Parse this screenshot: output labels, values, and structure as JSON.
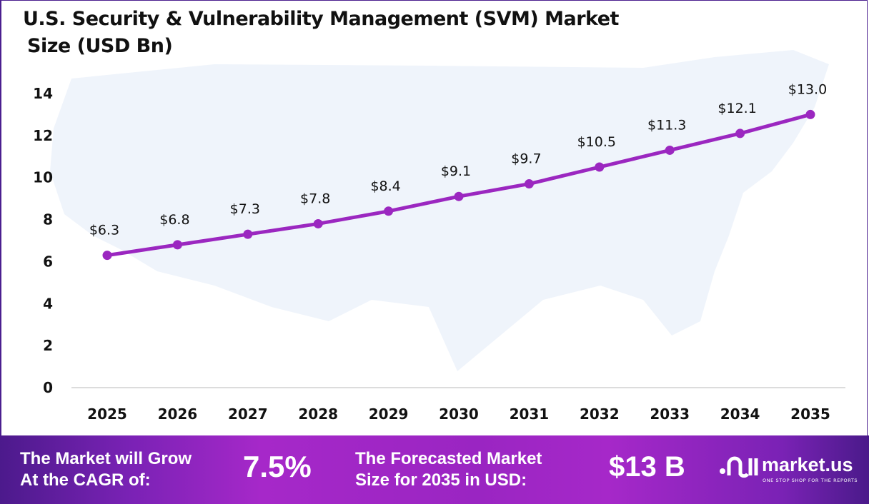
{
  "title_line1": "U.S. Security & Vulnerability Management (SVM) Market",
  "title_line2": "Size (USD Bn)",
  "chart_data": {
    "type": "line",
    "title": "U.S. Security & Vulnerability Management (SVM) Market Size (USD Bn)",
    "categories": [
      "2025",
      "2026",
      "2027",
      "2028",
      "2029",
      "2030",
      "2031",
      "2032",
      "2033",
      "2034",
      "2035"
    ],
    "values": [
      6.3,
      6.8,
      7.3,
      7.8,
      8.4,
      9.1,
      9.7,
      10.5,
      11.3,
      12.1,
      13.0
    ],
    "data_labels": [
      "$6.3",
      "$6.8",
      "$7.3",
      "$7.8",
      "$8.4",
      "$9.1",
      "$9.7",
      "$10.5",
      "$11.3",
      "$12.1",
      "$13.0"
    ],
    "yticks": [
      0,
      2,
      4,
      6,
      8,
      10,
      12,
      14
    ],
    "ylim": [
      0,
      14
    ],
    "grid": false,
    "line_color": "#9b27c0",
    "background": "U.S. map silhouette"
  },
  "footer": {
    "cagr_label": "The Market will Grow At the CAGR of:",
    "cagr_label_1": "The Market will Grow",
    "cagr_label_2": "At the CAGR of:",
    "cagr_value": "7.5%",
    "forecast_label_1": "The Forecasted Market",
    "forecast_label_2": "Size for 2035 in USD:",
    "forecast_value": "$13 B",
    "logo_name": "market.us",
    "logo_tagline": "ONE STOP SHOP FOR THE REPORTS"
  }
}
